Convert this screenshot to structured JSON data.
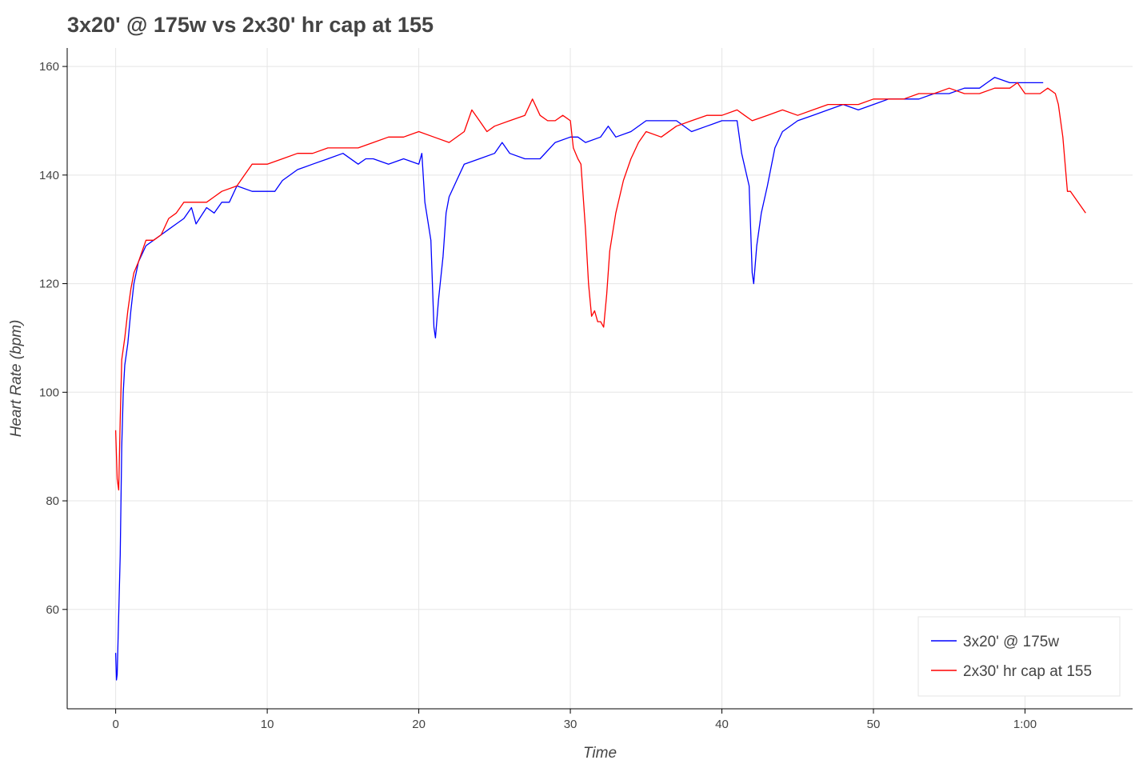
{
  "chart_data": {
    "type": "line",
    "title": "3x20' @ 175w vs 2x30' hr cap at 155",
    "xlabel": "Time",
    "ylabel": "Heart Rate (bpm)",
    "xlim": [
      -3.2,
      67.1
    ],
    "ylim": [
      41.7,
      163.4
    ],
    "xticks": [
      0,
      10,
      20,
      30,
      40,
      50,
      60
    ],
    "xtick_labels": [
      "0",
      "10",
      "20",
      "30",
      "40",
      "50",
      "1:00"
    ],
    "yticks": [
      60,
      80,
      100,
      120,
      140,
      160
    ],
    "ytick_labels": [
      "60",
      "80",
      "100",
      "120",
      "140",
      "160"
    ],
    "grid": true,
    "legend_position": "bottom-right",
    "series": [
      {
        "name": "3x20' @ 175w",
        "color": "#0000ff",
        "x": [
          0,
          0.05,
          0.1,
          0.3,
          0.4,
          0.5,
          0.6,
          0.8,
          1,
          1.2,
          1.5,
          2,
          2.5,
          3,
          3.5,
          4,
          4.5,
          5,
          5.3,
          6,
          6.5,
          7,
          7.5,
          8,
          9,
          10,
          10.5,
          11,
          12,
          13,
          14,
          15,
          16,
          16.5,
          17,
          18,
          19,
          20,
          20.2,
          20.4,
          20.8,
          21,
          21.1,
          21.3,
          21.6,
          21.8,
          22,
          22.5,
          23,
          24,
          25,
          25.5,
          26,
          27,
          28,
          29,
          30,
          30.5,
          31,
          32,
          32.5,
          33,
          34,
          35,
          36,
          37,
          38,
          39,
          40,
          41,
          41.3,
          41.8,
          42,
          42.1,
          42.3,
          42.6,
          43,
          43.5,
          44,
          45,
          46,
          47,
          48,
          49,
          50,
          51,
          52,
          53,
          54,
          55,
          56,
          57,
          57.5,
          58,
          59,
          60,
          61.2
        ],
        "y": [
          52,
          47,
          48,
          70,
          90,
          100,
          105,
          109,
          115,
          120,
          124,
          127,
          128,
          129,
          130,
          131,
          132,
          134,
          131,
          134,
          133,
          135,
          135,
          138,
          137,
          137,
          137,
          139,
          141,
          142,
          143,
          144,
          142,
          143,
          143,
          142,
          143,
          142,
          144,
          135,
          128,
          112,
          110,
          117,
          125,
          133,
          136,
          139,
          142,
          143,
          144,
          146,
          144,
          143,
          143,
          146,
          147,
          147,
          146,
          147,
          149,
          147,
          148,
          150,
          150,
          150,
          148,
          149,
          150,
          150,
          144,
          138,
          122,
          120,
          127,
          133,
          138,
          145,
          148,
          150,
          151,
          152,
          153,
          152,
          153,
          154,
          154,
          154,
          155,
          155,
          156,
          156,
          157,
          158,
          157,
          157,
          157
        ]
      },
      {
        "name": "2x30' hr cap at 155",
        "color": "#ff0000",
        "x": [
          0,
          0.1,
          0.2,
          0.3,
          0.4,
          0.6,
          0.8,
          1,
          1.2,
          1.5,
          2,
          2.5,
          3,
          3.5,
          4,
          4.5,
          5,
          6,
          6.5,
          7,
          8,
          8.5,
          9,
          10,
          11,
          12,
          13,
          14,
          15,
          16,
          17,
          18,
          19,
          20,
          21,
          22,
          23,
          23.5,
          24,
          24.5,
          25,
          26,
          27,
          27.5,
          28,
          28.5,
          29,
          29.5,
          30,
          30.2,
          30.5,
          30.7,
          31,
          31.2,
          31.4,
          31.6,
          31.8,
          32,
          32.2,
          32.4,
          32.6,
          33,
          33.5,
          34,
          34.5,
          35,
          36,
          37,
          38,
          39,
          40,
          41,
          41.5,
          42,
          43,
          44,
          45,
          46,
          47,
          48,
          49,
          50,
          51,
          52,
          53,
          54,
          55,
          56,
          57,
          58,
          59,
          59.5,
          60,
          61,
          61.5,
          62,
          62.2,
          62.5,
          62.8,
          63,
          64
        ],
        "y": [
          93,
          84,
          82,
          95,
          106,
          110,
          115,
          119,
          122,
          124,
          128,
          128,
          129,
          132,
          133,
          135,
          135,
          135,
          136,
          137,
          138,
          140,
          142,
          142,
          143,
          144,
          144,
          145,
          145,
          145,
          146,
          147,
          147,
          148,
          147,
          146,
          148,
          152,
          150,
          148,
          149,
          150,
          151,
          154,
          151,
          150,
          150,
          151,
          150,
          145,
          143,
          142,
          130,
          120,
          114,
          115,
          113,
          113,
          112,
          118,
          126,
          133,
          139,
          143,
          146,
          148,
          147,
          149,
          150,
          151,
          151,
          152,
          151,
          150,
          151,
          152,
          151,
          152,
          153,
          153,
          153,
          154,
          154,
          154,
          155,
          155,
          156,
          155,
          155,
          156,
          156,
          157,
          155,
          155,
          156,
          155,
          153,
          147,
          137,
          137,
          133
        ]
      }
    ]
  }
}
